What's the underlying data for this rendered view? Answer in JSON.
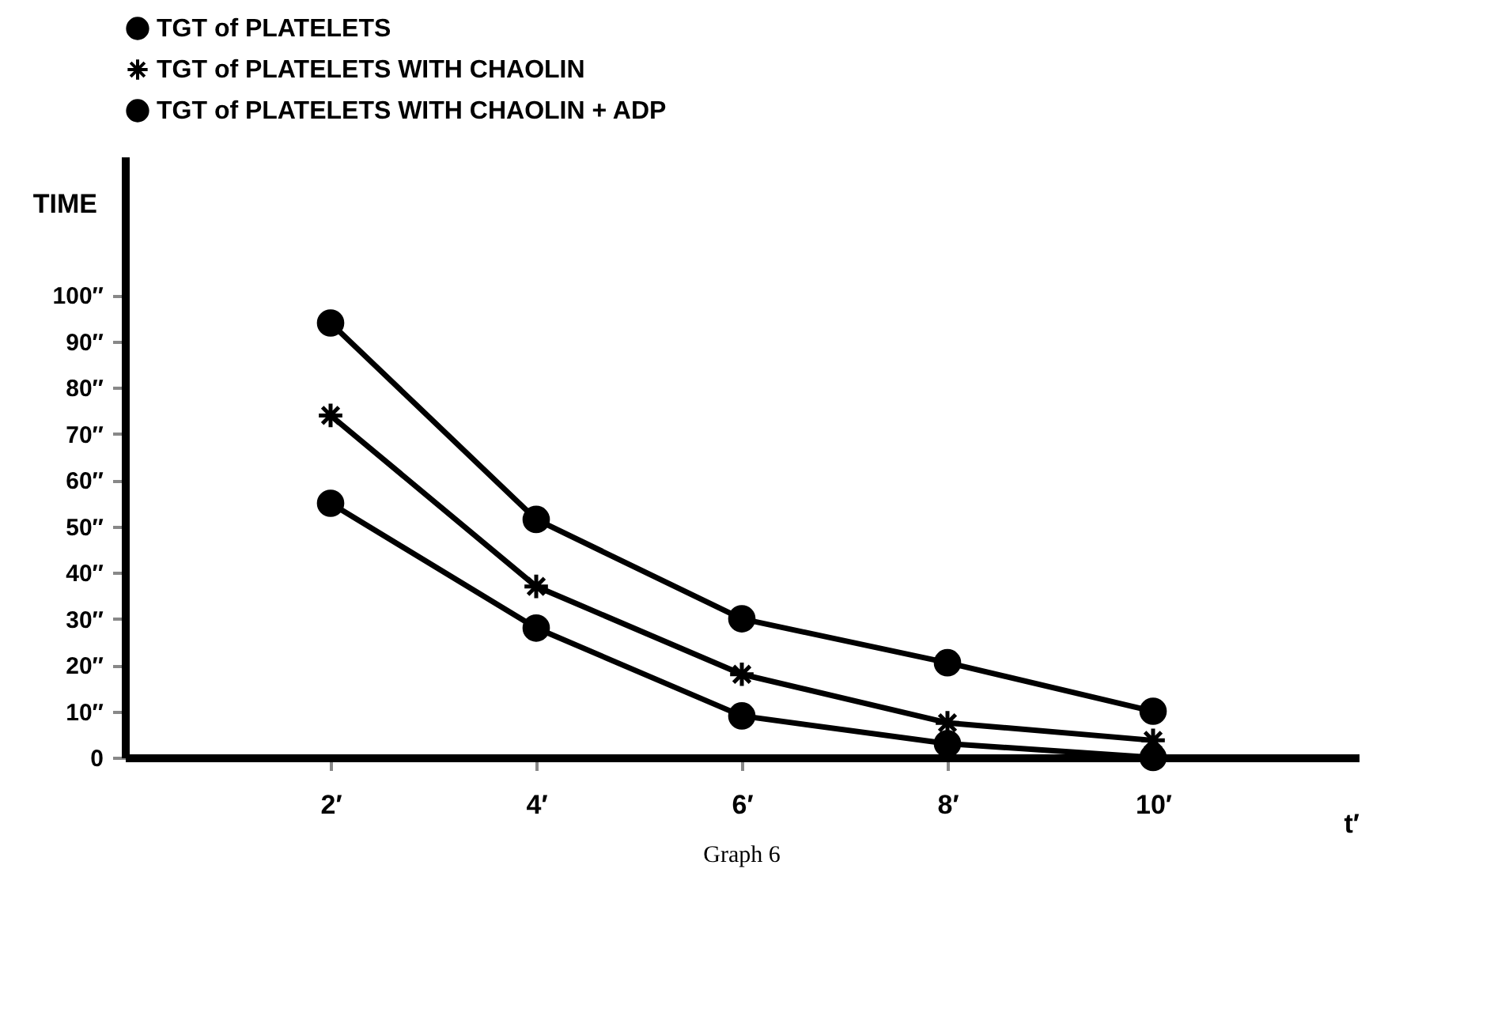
{
  "chart_data": {
    "type": "line",
    "xlabel": "t′",
    "ylabel": "TIME",
    "x": [
      2,
      4,
      6,
      8,
      10
    ],
    "xlim": [
      0,
      12
    ],
    "ylim": [
      0,
      130
    ],
    "xticks": [
      {
        "value": 2,
        "label": "2′"
      },
      {
        "value": 4,
        "label": "4′"
      },
      {
        "value": 6,
        "label": "6′"
      },
      {
        "value": 8,
        "label": "8′"
      },
      {
        "value": 10,
        "label": "10′"
      }
    ],
    "yticks": [
      0,
      {
        "value": 10,
        "label": "10″"
      },
      {
        "value": 20,
        "label": "20″"
      },
      {
        "value": 30,
        "label": "30″"
      },
      {
        "value": 40,
        "label": "40″"
      },
      {
        "value": 50,
        "label": "50″"
      },
      {
        "value": 60,
        "label": "60″"
      },
      {
        "value": 70,
        "label": "70″"
      },
      {
        "value": 80,
        "label": "80″"
      },
      {
        "value": 90,
        "label": "90″"
      },
      {
        "value": 100,
        "label": "100″"
      }
    ],
    "series": [
      {
        "name": "TGT of PLATELETS",
        "color": "#000000",
        "marker": "circle",
        "values": [
          94,
          51.5,
          30,
          20.5,
          10
        ]
      },
      {
        "name": "TGT of PLATELETS WITH CHAOLIN",
        "color": "#000000",
        "marker": "cross",
        "values": [
          74,
          37,
          18,
          7.5,
          3.7
        ]
      },
      {
        "name": "TGT of PLATELETS WITH CHAOLIN + ADP",
        "color": "#000000",
        "marker": "circle",
        "values": [
          55,
          28,
          9,
          3,
          0
        ]
      }
    ],
    "grid": false,
    "legend": "top",
    "line_style": "solid",
    "annotations": [
      "Graph 6"
    ]
  }
}
